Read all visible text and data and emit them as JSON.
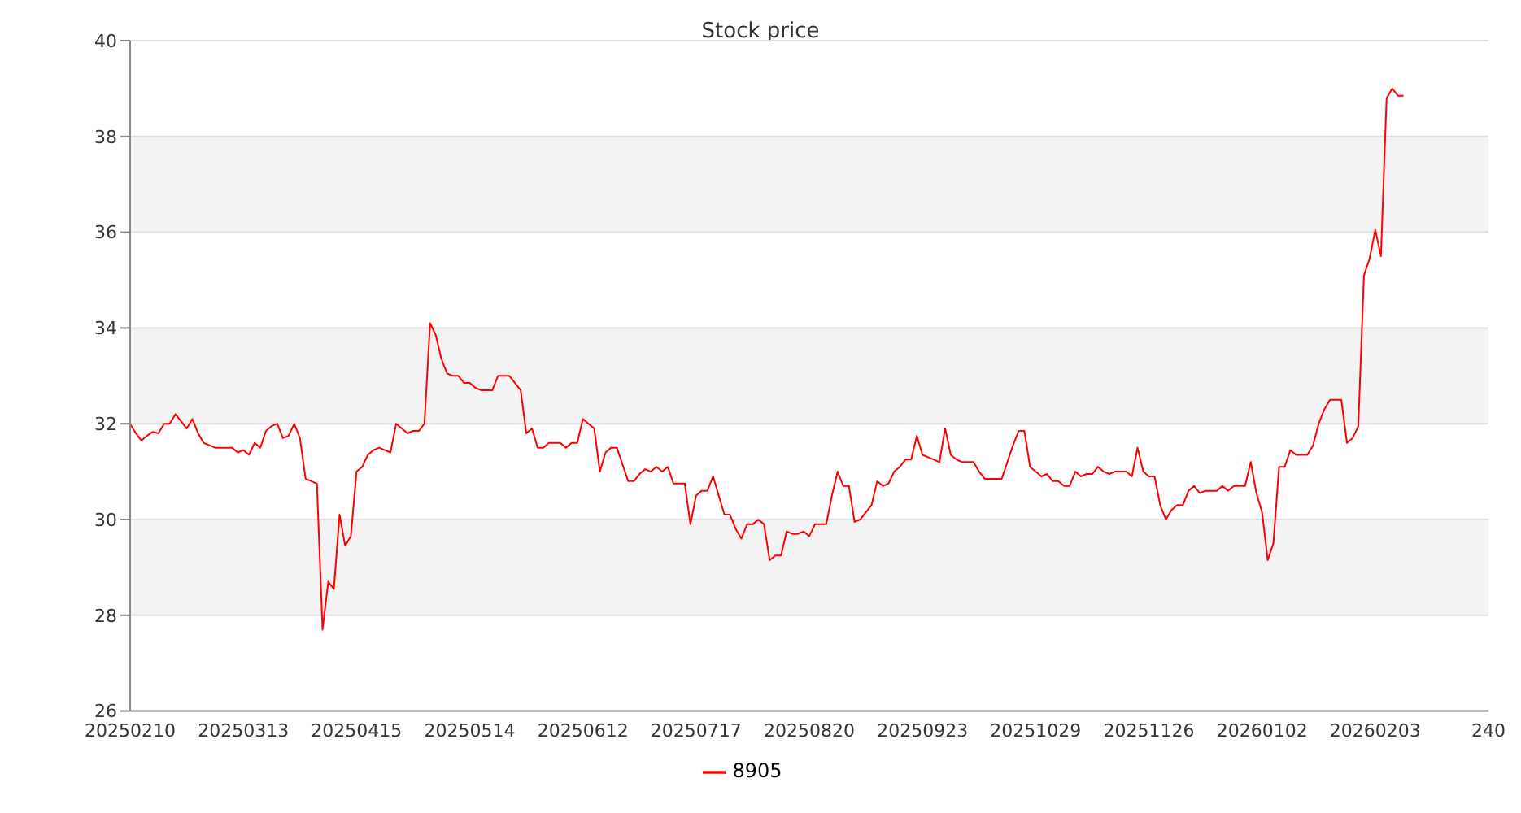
{
  "chart_data": {
    "type": "line",
    "title": "Stock price",
    "categories": [
      "20250210",
      null,
      null,
      null,
      null,
      null,
      null,
      null,
      null,
      null,
      null,
      null,
      null,
      null,
      null,
      null,
      null,
      null,
      null,
      null,
      "20250313",
      null,
      null,
      null,
      null,
      null,
      null,
      null,
      null,
      null,
      null,
      null,
      null,
      null,
      null,
      null,
      null,
      null,
      null,
      null,
      "20250415",
      null,
      null,
      null,
      null,
      null,
      null,
      null,
      null,
      null,
      null,
      null,
      null,
      null,
      null,
      null,
      null,
      null,
      null,
      null,
      "20250514",
      null,
      null,
      null,
      null,
      null,
      null,
      null,
      null,
      null,
      null,
      null,
      null,
      null,
      null,
      null,
      null,
      null,
      null,
      null,
      "20250612",
      null,
      null,
      null,
      null,
      null,
      null,
      null,
      null,
      null,
      null,
      null,
      null,
      null,
      null,
      null,
      null,
      null,
      null,
      null,
      "20250717",
      null,
      null,
      null,
      null,
      null,
      null,
      null,
      null,
      null,
      null,
      null,
      null,
      null,
      null,
      null,
      null,
      null,
      null,
      null,
      "20250820",
      null,
      null,
      null,
      null,
      null,
      null,
      null,
      null,
      null,
      null,
      null,
      null,
      null,
      null,
      null,
      null,
      null,
      null,
      null,
      "20250923",
      null,
      null,
      null,
      null,
      null,
      null,
      null,
      null,
      null,
      null,
      null,
      null,
      null,
      null,
      null,
      null,
      null,
      null,
      null,
      "20251029",
      null,
      null,
      null,
      null,
      null,
      null,
      null,
      null,
      null,
      null,
      null,
      null,
      null,
      null,
      null,
      null,
      null,
      null,
      null,
      "20251126",
      null,
      null,
      null,
      null,
      null,
      null,
      null,
      null,
      null,
      null,
      null,
      null,
      null,
      null,
      null,
      null,
      null,
      null,
      null,
      "20260102",
      null,
      null,
      null,
      null,
      null,
      null,
      null,
      null,
      null,
      null,
      null,
      null,
      null,
      null,
      null,
      null,
      null,
      null,
      null,
      "20260203",
      null,
      null,
      null,
      null,
      null,
      null,
      null,
      null,
      null,
      null,
      null,
      null,
      null,
      null,
      null,
      null,
      null,
      null,
      null,
      "240"
    ],
    "series": [
      {
        "name": "8905",
        "color": "#ff0000",
        "values": [
          32.0,
          31.8,
          31.65,
          31.75,
          31.83,
          31.8,
          32.0,
          32.0,
          32.2,
          32.05,
          31.9,
          32.1,
          31.8,
          31.6,
          31.55,
          31.5,
          31.5,
          31.5,
          31.5,
          31.4,
          31.45,
          31.35,
          31.6,
          31.5,
          31.85,
          31.95,
          32.0,
          31.7,
          31.75,
          32.0,
          31.7,
          30.85,
          30.8,
          30.75,
          27.7,
          28.7,
          28.55,
          30.1,
          29.45,
          29.65,
          31.0,
          31.1,
          31.35,
          31.45,
          31.5,
          31.45,
          31.4,
          32.0,
          31.9,
          31.8,
          31.85,
          31.85,
          32.0,
          34.1,
          33.85,
          33.35,
          33.05,
          33.0,
          33.0,
          32.85,
          32.85,
          32.75,
          32.7,
          32.7,
          32.7,
          33.0,
          33.0,
          33.0,
          32.85,
          32.7,
          31.8,
          31.9,
          31.5,
          31.5,
          31.6,
          31.6,
          31.6,
          31.5,
          31.6,
          31.6,
          32.1,
          32.0,
          31.9,
          31.0,
          31.4,
          31.5,
          31.5,
          31.15,
          30.8,
          30.8,
          30.95,
          31.05,
          31.0,
          31.1,
          31.0,
          31.1,
          30.75,
          30.75,
          30.75,
          29.9,
          30.5,
          30.6,
          30.6,
          30.9,
          30.5,
          30.1,
          30.1,
          29.8,
          29.6,
          29.9,
          29.9,
          30.0,
          29.9,
          29.15,
          29.25,
          29.25,
          29.75,
          29.7,
          29.7,
          29.75,
          29.65,
          29.9,
          29.9,
          29.9,
          30.5,
          31.0,
          30.7,
          30.7,
          29.95,
          30.0,
          30.15,
          30.3,
          30.8,
          30.7,
          30.75,
          31.0,
          31.1,
          31.25,
          31.25,
          31.75,
          31.35,
          31.3,
          31.25,
          31.2,
          31.9,
          31.35,
          31.25,
          31.2,
          31.2,
          31.2,
          31.0,
          30.85,
          30.85,
          30.85,
          30.85,
          31.2,
          31.55,
          31.85,
          31.85,
          31.1,
          31.0,
          30.9,
          30.95,
          30.8,
          30.8,
          30.7,
          30.7,
          31.0,
          30.9,
          30.95,
          30.95,
          31.1,
          31.0,
          30.95,
          31.0,
          31.0,
          31.0,
          30.9,
          31.5,
          31.0,
          30.9,
          30.9,
          30.3,
          30.0,
          30.2,
          30.3,
          30.3,
          30.6,
          30.7,
          30.55,
          30.6,
          30.6,
          30.6,
          30.7,
          30.6,
          30.7,
          30.7,
          30.7,
          31.2,
          30.55,
          30.15,
          29.15,
          29.5,
          31.1,
          31.1,
          31.45,
          31.35,
          31.35,
          31.35,
          31.55,
          32.0,
          32.3,
          32.5,
          32.5,
          32.5,
          31.6,
          31.7,
          31.95,
          35.1,
          35.45,
          36.05,
          35.5,
          38.8,
          39.0,
          38.85,
          38.85,
          null,
          null,
          null,
          null,
          null,
          null,
          null,
          null,
          null,
          null,
          null,
          null,
          null,
          null,
          null
        ]
      }
    ],
    "ylim": [
      26,
      40
    ],
    "yticks": [
      26,
      28,
      30,
      32,
      34,
      36,
      38,
      40
    ],
    "grid": "y",
    "legend": "bottom",
    "marker": "none",
    "line_style": "solid"
  }
}
